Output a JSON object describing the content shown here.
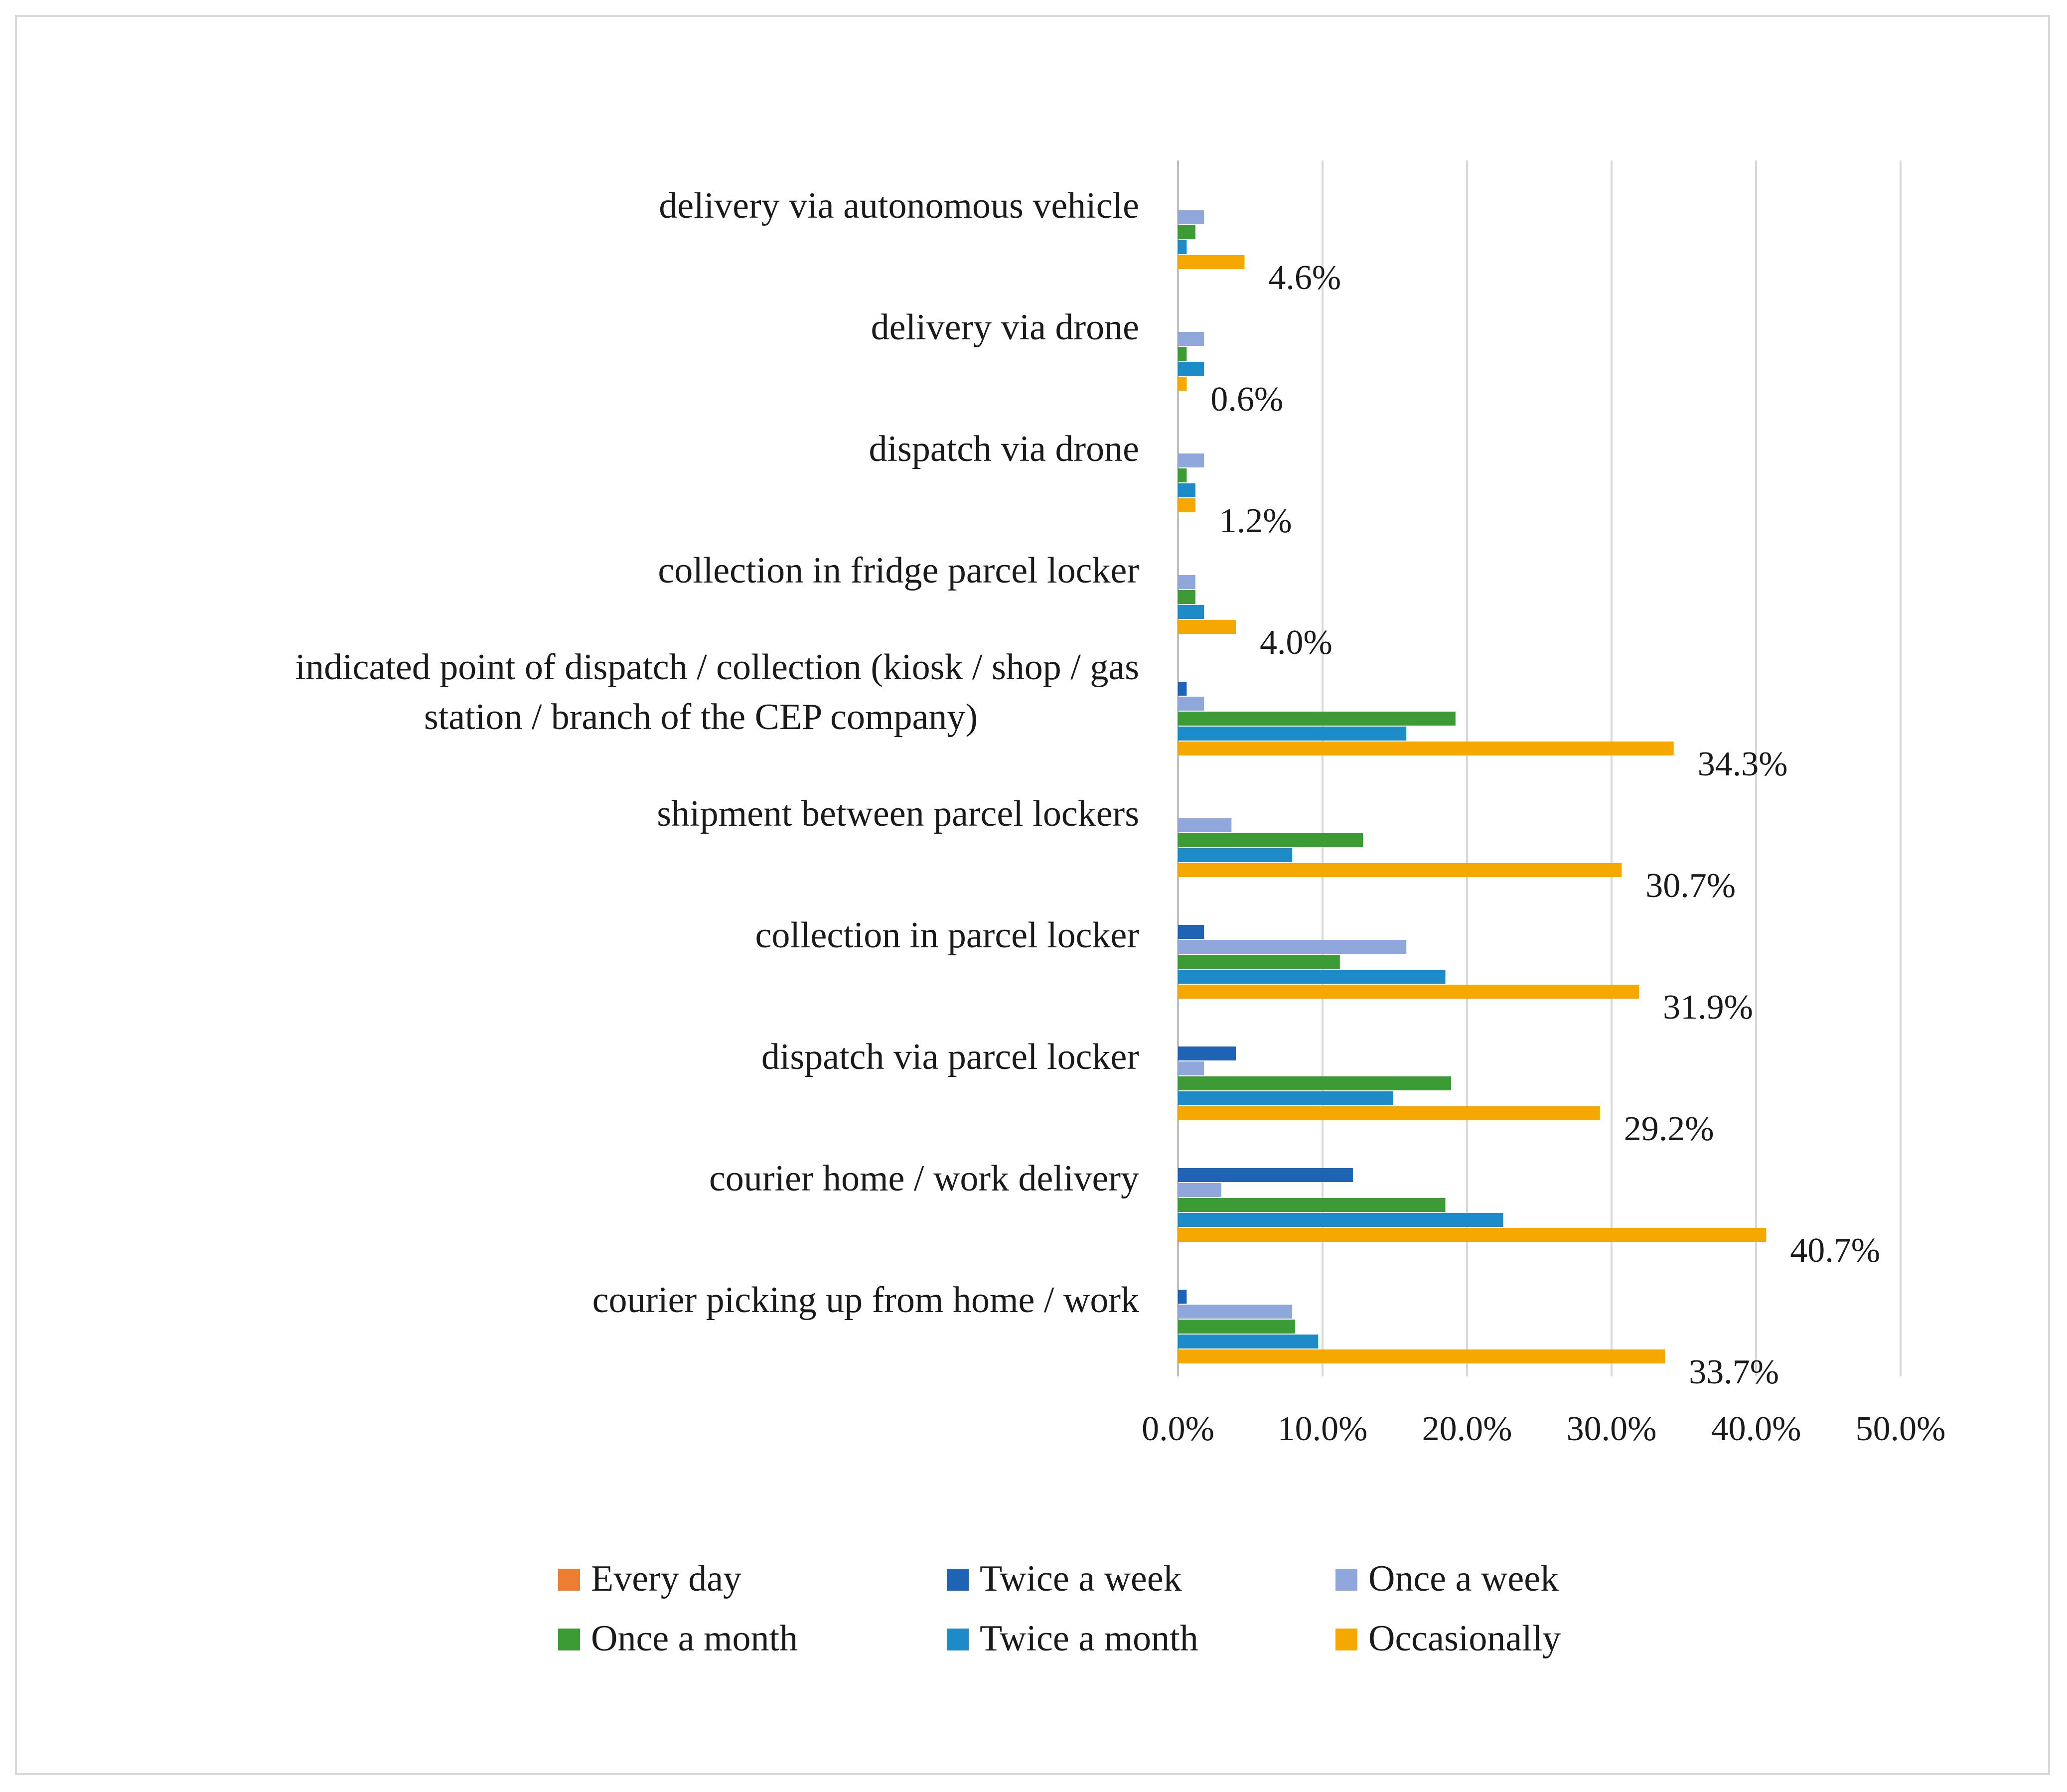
{
  "chart_data": {
    "type": "bar",
    "orientation": "horizontal",
    "title": "",
    "xlabel": "",
    "ylabel": "",
    "xlim": [
      0,
      50
    ],
    "x_ticks": [
      "0.0%",
      "10.0%",
      "20.0%",
      "30.0%",
      "40.0%",
      "50.0%"
    ],
    "x_tick_values": [
      0,
      10,
      20,
      30,
      40,
      50
    ],
    "grid": "vertical",
    "legend_position": "bottom",
    "categories": [
      [
        "delivery via autonomous vehicle"
      ],
      [
        "delivery via drone"
      ],
      [
        "dispatch via drone"
      ],
      [
        "collection in fridge parcel locker"
      ],
      [
        "indicated point of dispatch / collection (kiosk / shop / gas",
        "station / branch of the CEP company)"
      ],
      [
        "shipment between parcel lockers"
      ],
      [
        "collection in parcel locker"
      ],
      [
        "dispatch via parcel locker"
      ],
      [
        "courier home / work delivery"
      ],
      [
        "courier picking up from home / work"
      ]
    ],
    "series": [
      {
        "name": "Every day",
        "color": "#ED7D31",
        "values": [
          0,
          0,
          0,
          0,
          0,
          0,
          0,
          0,
          0,
          0
        ]
      },
      {
        "name": "Twice a week",
        "color": "#1F64B4",
        "values": [
          0,
          0,
          0,
          0,
          0.6,
          0,
          1.8,
          4.0,
          12.1,
          0.6
        ]
      },
      {
        "name": "Once a week",
        "color": "#8FA7DB",
        "values": [
          1.8,
          1.8,
          1.8,
          1.2,
          1.8,
          3.7,
          15.8,
          1.8,
          3.0,
          7.9
        ]
      },
      {
        "name": "Once a month",
        "color": "#3D9B35",
        "values": [
          1.2,
          0.6,
          0.6,
          1.2,
          19.2,
          12.8,
          11.2,
          18.9,
          18.5,
          8.1
        ]
      },
      {
        "name": "Twice a month",
        "color": "#1E8BC9",
        "values": [
          0.6,
          1.8,
          1.2,
          1.8,
          15.8,
          7.9,
          18.5,
          14.9,
          22.5,
          9.7
        ]
      },
      {
        "name": "Occasionally",
        "color": "#F5A800",
        "values": [
          4.6,
          0.6,
          1.2,
          4.0,
          34.3,
          30.7,
          31.9,
          29.2,
          40.7,
          33.7
        ]
      }
    ],
    "data_labels": {
      "series": "Occasionally",
      "labels": [
        "4.6%",
        "0.6%",
        "1.2%",
        "4.0%",
        "34.3%",
        "30.7%",
        "31.9%",
        "29.2%",
        "40.7%",
        "33.7%"
      ]
    }
  },
  "colors": {
    "gridline": "#d9d9d9",
    "axis": "#bfbfbf",
    "frame": "#d9d9d9",
    "text": "#1a1a1a"
  }
}
